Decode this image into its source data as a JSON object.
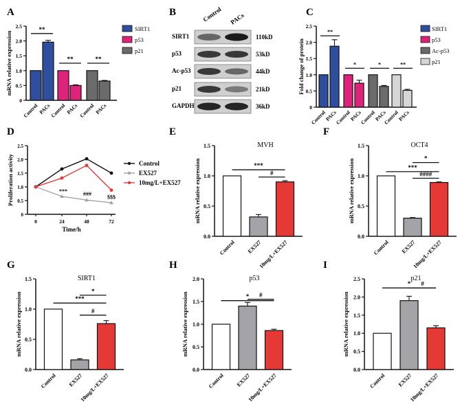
{
  "colors": {
    "navy": "#2f4f9e",
    "magenta": "#e0237a",
    "darkgray": "#6b6b6b",
    "lightgray": "#d6d6d6",
    "white": "#ffffff",
    "gray": "#a3a3a8",
    "red": "#e53935",
    "black": "#111111"
  },
  "chart_data": [
    {
      "panel": "A",
      "type": "bar",
      "ylabel": "mRNA relative expression",
      "ylim": [
        0,
        2.5
      ],
      "yticks": [
        0,
        0.5,
        1.0,
        1.5,
        2.0,
        2.5
      ],
      "ytick_labels": [
        "0",
        "0.5",
        "1.0",
        "1.5",
        "2.0",
        "2.5"
      ],
      "groups": [
        {
          "name": "SIRT1",
          "color": "#2f4f9e",
          "categories": [
            "Control",
            "PACs"
          ],
          "values": [
            1.0,
            1.96
          ],
          "errors": [
            0,
            0.06
          ],
          "sig": "**"
        },
        {
          "name": "p53",
          "color": "#e0237a",
          "categories": [
            "Control",
            "PACs"
          ],
          "values": [
            1.0,
            0.5
          ],
          "errors": [
            0,
            0.02
          ],
          "sig": "**"
        },
        {
          "name": "p21",
          "color": "#6b6b6b",
          "categories": [
            "Control",
            "PACs"
          ],
          "values": [
            1.0,
            0.65
          ],
          "errors": [
            0,
            0.02
          ],
          "sig": "**"
        }
      ],
      "legend": [
        "SIRT1",
        "p53",
        "p21"
      ]
    },
    {
      "panel": "B",
      "type": "blot",
      "columns": [
        "Control",
        "PACs"
      ],
      "proteins": [
        "SIRT1",
        "p53",
        "Ac-p53",
        "p21",
        "GAPDH"
      ],
      "sizes": [
        "110kD",
        "53kD",
        "44kD",
        "21kD",
        "36kD"
      ]
    },
    {
      "panel": "C",
      "type": "bar",
      "ylabel": "Fold change of protein",
      "ylim": [
        0,
        2.5
      ],
      "yticks": [
        0,
        0.5,
        1.0,
        1.5,
        2.0,
        2.5
      ],
      "ytick_labels": [
        "0",
        "0.5",
        "1.0",
        "1.5",
        "2.0",
        "2.5"
      ],
      "groups": [
        {
          "name": "SIRT1",
          "color": "#2f4f9e",
          "categories": [
            "Control",
            "PACs"
          ],
          "values": [
            1.0,
            1.88
          ],
          "errors": [
            0,
            0.2
          ],
          "sig": "**"
        },
        {
          "name": "p53",
          "color": "#e0237a",
          "categories": [
            "Control",
            "PACs"
          ],
          "values": [
            1.0,
            0.74
          ],
          "errors": [
            0,
            0.09
          ],
          "sig": "*"
        },
        {
          "name": "Ac-p53",
          "color": "#6b6b6b",
          "categories": [
            "Control",
            "PACs"
          ],
          "values": [
            1.0,
            0.64
          ],
          "errors": [
            0,
            0.03
          ],
          "sig": "*"
        },
        {
          "name": "p21",
          "color": "#d6d6d6",
          "categories": [
            "Control",
            "PACs"
          ],
          "values": [
            1.0,
            0.52
          ],
          "errors": [
            0,
            0.03
          ],
          "sig": "**"
        }
      ],
      "legend": [
        "SIRT1",
        "p53",
        "Ac-p53",
        "p21"
      ]
    },
    {
      "panel": "D",
      "type": "line",
      "xlabel": "Time/h",
      "ylabel": "Proliferation activity",
      "x": [
        0,
        24,
        48,
        72
      ],
      "ylim": [
        0,
        2.5
      ],
      "yticks": [
        0,
        0.5,
        1.0,
        1.5,
        2.0,
        2.5
      ],
      "ytick_labels": [
        "0",
        "0.5",
        "1.0",
        "1.5",
        "2.0",
        "2.5"
      ],
      "series": [
        {
          "name": "Control",
          "color": "#111111",
          "values": [
            1.0,
            1.65,
            2.02,
            1.5
          ]
        },
        {
          "name": "EX527",
          "color": "#a3a3a8",
          "values": [
            1.0,
            0.65,
            0.52,
            0.42
          ]
        },
        {
          "name": "10mg/L+EX527",
          "color": "#e53935",
          "values": [
            1.0,
            1.32,
            1.78,
            0.88
          ]
        }
      ],
      "annotations": [
        "***",
        "###",
        "$$$"
      ]
    },
    {
      "panel": "E",
      "type": "bar",
      "title": "MVH",
      "ylabel": "mRNA relative expression",
      "ylim": [
        0,
        1.5
      ],
      "yticks": [
        0,
        0.5,
        1.0,
        1.5
      ],
      "ytick_labels": [
        "0.0",
        "0.5",
        "1.0",
        "1.5"
      ],
      "categories": [
        "Control",
        "EX527",
        "10mg/L+EX527"
      ],
      "values": [
        1.0,
        0.32,
        0.9
      ],
      "errors": [
        0,
        0.04,
        0.02
      ],
      "colors": [
        "#ffffff",
        "#a3a3a8",
        "#e53935"
      ],
      "sig": [
        "***",
        "#"
      ]
    },
    {
      "panel": "F",
      "type": "bar",
      "title": "OCT4",
      "ylabel": "mRNA relative expression",
      "ylim": [
        0,
        1.5
      ],
      "yticks": [
        0,
        0.5,
        1.0,
        1.5
      ],
      "ytick_labels": [
        "0.0",
        "0.5",
        "1.0",
        "1.5"
      ],
      "categories": [
        "Control",
        "EX527",
        "10mg/L+EX527"
      ],
      "values": [
        1.0,
        0.3,
        0.89
      ],
      "errors": [
        0,
        0.01,
        0.01
      ],
      "colors": [
        "#ffffff",
        "#a3a3a8",
        "#e53935"
      ],
      "sig": [
        "***",
        "*",
        "####"
      ]
    },
    {
      "panel": "G",
      "type": "bar",
      "title": "SIRT1",
      "ylabel": "mRNA relative expression",
      "ylim": [
        0,
        1.5
      ],
      "yticks": [
        0,
        0.5,
        1.0,
        1.5
      ],
      "ytick_labels": [
        "0.0",
        "0.5",
        "1.0",
        "1.5"
      ],
      "categories": [
        "Control",
        "EX527",
        "10mg/L+EX527"
      ],
      "values": [
        1.0,
        0.16,
        0.76
      ],
      "errors": [
        0,
        0.02,
        0.05
      ],
      "colors": [
        "#ffffff",
        "#a3a3a8",
        "#e53935"
      ],
      "sig": [
        "***",
        "*",
        "#"
      ]
    },
    {
      "panel": "H",
      "type": "bar",
      "title": "p53",
      "ylabel": "mRNA relative expression",
      "ylim": [
        0,
        2.0
      ],
      "yticks": [
        0,
        0.5,
        1.0,
        1.5,
        2.0
      ],
      "ytick_labels": [
        "0.0",
        "0.5",
        "1.0",
        "1.5",
        "2.0"
      ],
      "categories": [
        "Control",
        "EX527",
        "10mg/L+EX527"
      ],
      "values": [
        1.0,
        1.4,
        0.86
      ],
      "errors": [
        0,
        0.08,
        0.03
      ],
      "colors": [
        "#ffffff",
        "#a3a3a8",
        "#e53935"
      ],
      "sig": [
        "*",
        "#"
      ]
    },
    {
      "panel": "I",
      "type": "bar",
      "title": "p21",
      "ylabel": "mRNA relative expression",
      "ylim": [
        0,
        2.5
      ],
      "yticks": [
        0,
        0.5,
        1.0,
        1.5,
        2.0,
        2.5
      ],
      "ytick_labels": [
        "0.0",
        "0.5",
        "1.0",
        "1.5",
        "2.0",
        "2.5"
      ],
      "categories": [
        "Control",
        "EX527",
        "10mg/L+EX527"
      ],
      "values": [
        1.0,
        1.9,
        1.15
      ],
      "errors": [
        0,
        0.12,
        0.06
      ],
      "colors": [
        "#ffffff",
        "#a3a3a8",
        "#e53935"
      ],
      "sig": [
        "*",
        "#"
      ]
    }
  ]
}
